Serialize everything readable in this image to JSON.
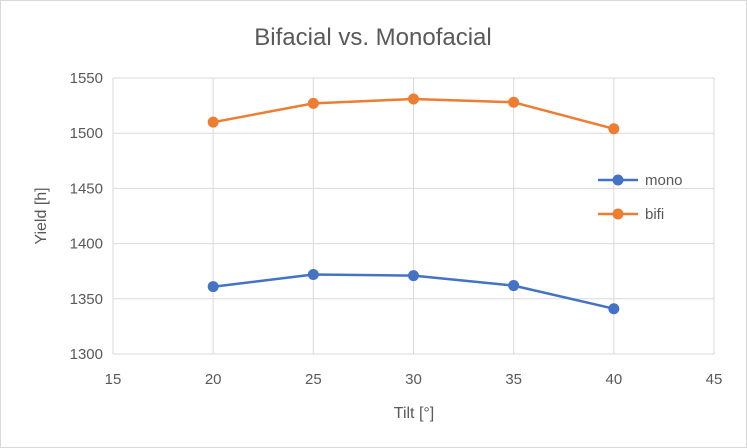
{
  "chart_data": {
    "type": "scatter",
    "title": "Bifacial vs. Monofacial",
    "xlabel": "Tilt [°]",
    "ylabel": "Yield [h]",
    "xlim": [
      15,
      45
    ],
    "ylim": [
      1300,
      1550
    ],
    "x_ticks": [
      15,
      20,
      25,
      30,
      35,
      40,
      45
    ],
    "y_ticks": [
      1300,
      1350,
      1400,
      1450,
      1500,
      1550
    ],
    "grid": true,
    "legend_position": "right",
    "series": [
      {
        "name": "mono",
        "color": "#4472C4",
        "x": [
          20,
          25,
          30,
          35,
          40
        ],
        "y": [
          1361,
          1372,
          1371,
          1362,
          1341
        ]
      },
      {
        "name": "bifi",
        "color": "#ED7D31",
        "x": [
          20,
          25,
          30,
          35,
          40
        ],
        "y": [
          1510,
          1527,
          1531,
          1528,
          1504
        ]
      }
    ]
  }
}
